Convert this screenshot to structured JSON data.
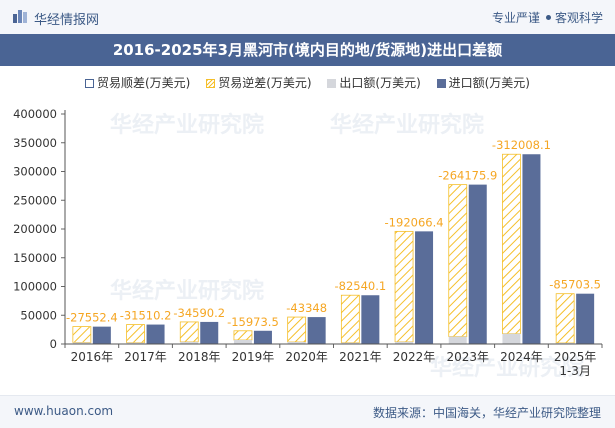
{
  "header": {
    "brand": "华经情报网",
    "tag1": "专业严谨",
    "tag2": "客观科学"
  },
  "watermark": "华经产业研究院",
  "colors": {
    "surplus": "#4a6494",
    "deficit": "#f5bf2a",
    "export": "#d5d7dc",
    "import": "#5a6d99",
    "label": "#f5a623",
    "header_bg": "#4a6494"
  },
  "chart_data": {
    "type": "bar",
    "title": "2016-2025年3月黑河市(境内目的地/货源地)进出口差额",
    "categories": [
      "2016年",
      "2017年",
      "2018年",
      "2019年",
      "2020年",
      "2021年",
      "2022年",
      "2023年",
      "2024年",
      "2025年\n1-3月"
    ],
    "series": [
      {
        "name": "贸易顺差(万美元)",
        "values": [
          0,
          0,
          0,
          0,
          0,
          0,
          0,
          0,
          0,
          0
        ]
      },
      {
        "name": "贸易逆差(万美元)",
        "values": [
          27552.4,
          31510.2,
          34590.2,
          15973.5,
          43348,
          82540.1,
          192066.4,
          264175.9,
          312008.1,
          85703.5
        ]
      },
      {
        "name": "出口额(万美元)",
        "values": [
          2700,
          2300,
          3800,
          7000,
          3500,
          2300,
          3800,
          13000,
          18000,
          1800
        ]
      },
      {
        "name": "进口额(万美元)",
        "values": [
          30200,
          33800,
          38400,
          23000,
          46800,
          84800,
          195900,
          277200,
          330000,
          87500
        ]
      }
    ],
    "data_labels": [
      "-27552.4",
      "-31510.2",
      "-34590.2",
      "-15973.5",
      "-43348",
      "-82540.1",
      "-192066.4",
      "-264175.9",
      "-312008.1",
      "-85703.5"
    ],
    "ylim": [
      0,
      400000
    ],
    "yticks": [
      0,
      50000,
      100000,
      150000,
      200000,
      250000,
      300000,
      350000,
      400000
    ],
    "legend_position": "top",
    "grid": false
  },
  "footer": {
    "site": "www.huaon.com",
    "source": "数据来源：中国海关，华经产业研究院整理"
  }
}
